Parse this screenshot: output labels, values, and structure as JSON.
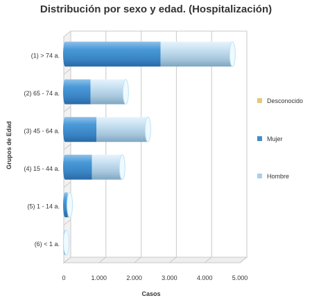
{
  "chart_data": {
    "type": "bar",
    "orientation": "horizontal",
    "stacked": true,
    "style": "3d-cylinder",
    "title": "Distribución por sexo y edad. (Hospitalización)",
    "xlabel": "Casos",
    "ylabel": "Grupos de Edad",
    "xlim": [
      0,
      5000
    ],
    "xticks": [
      "0",
      "1.000",
      "2.000",
      "3.000",
      "4.000",
      "5.000"
    ],
    "xtick_values": [
      0,
      1000,
      2000,
      3000,
      4000,
      5000
    ],
    "categories": [
      "(1) > 74 a.",
      "(2) 65 - 74 a.",
      "(3) 45 - 64 a.",
      "(4) 15 - 44 a.",
      "(5) 1 - 14 a.",
      "(6) < 1 a."
    ],
    "series": [
      {
        "name": "Desconocido",
        "values": [
          0,
          0,
          0,
          0,
          0,
          0
        ],
        "color": "#e8c77a"
      },
      {
        "name": "Mujer",
        "values": [
          2710,
          720,
          890,
          760,
          70,
          0
        ],
        "color": "#3f8ecf"
      },
      {
        "name": "Hombre",
        "values": [
          2040,
          1000,
          1460,
          860,
          60,
          30
        ],
        "color": "#a9cfee"
      }
    ],
    "legend_position": "right",
    "grid": true
  }
}
